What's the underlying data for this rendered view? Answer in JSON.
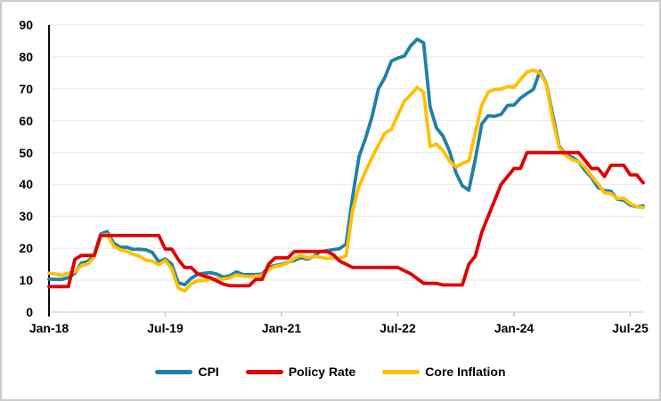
{
  "figure": {
    "background": "#FFFFFF",
    "border_color": "#CBCBCB",
    "gridline_color": "#EDEDED",
    "x_axis_color": "#D9D9D9",
    "y_axis_color": "#000000"
  },
  "legend": {
    "items": [
      {
        "label": "CPI",
        "color": "#2080A8"
      },
      {
        "label": "Policy Rate",
        "color": "#E00000"
      },
      {
        "label": "Core Inflation",
        "color": "#FFC000"
      }
    ]
  },
  "chart_data": {
    "type": "line",
    "title": "",
    "xlabel": "",
    "ylabel": "",
    "ylim": [
      0,
      90
    ],
    "y_ticks": [
      0,
      10,
      20,
      30,
      40,
      50,
      60,
      70,
      80,
      90
    ],
    "grid": "horizontal",
    "legend_position": "bottom",
    "x_tick_labels": [
      "Jan-18",
      "Jul-19",
      "Jan-21",
      "Jul-22",
      "Jan-24",
      "Jul-25"
    ],
    "x_tick_indices": [
      0,
      18,
      36,
      54,
      72,
      90
    ],
    "x": [
      "Jan-18",
      "Feb-18",
      "Mar-18",
      "Apr-18",
      "May-18",
      "Jun-18",
      "Jul-18",
      "Aug-18",
      "Sep-18",
      "Oct-18",
      "Nov-18",
      "Dec-18",
      "Jan-19",
      "Feb-19",
      "Mar-19",
      "Apr-19",
      "May-19",
      "Jun-19",
      "Jul-19",
      "Aug-19",
      "Sep-19",
      "Oct-19",
      "Nov-19",
      "Dec-19",
      "Jan-20",
      "Feb-20",
      "Mar-20",
      "Apr-20",
      "May-20",
      "Jun-20",
      "Jul-20",
      "Aug-20",
      "Sep-20",
      "Oct-20",
      "Nov-20",
      "Dec-20",
      "Jan-21",
      "Feb-21",
      "Mar-21",
      "Apr-21",
      "May-21",
      "Jun-21",
      "Jul-21",
      "Aug-21",
      "Sep-21",
      "Oct-21",
      "Nov-21",
      "Dec-21",
      "Jan-22",
      "Feb-22",
      "Mar-22",
      "Apr-22",
      "May-22",
      "Jun-22",
      "Jul-22",
      "Aug-22",
      "Sep-22",
      "Oct-22",
      "Nov-22",
      "Dec-22",
      "Jan-23",
      "Feb-23",
      "Mar-23",
      "Apr-23",
      "May-23",
      "Jun-23",
      "Jul-23",
      "Aug-23",
      "Sep-23",
      "Oct-23",
      "Nov-23",
      "Dec-23",
      "Jan-24",
      "Feb-24",
      "Mar-24",
      "Apr-24",
      "May-24",
      "Jun-24",
      "Jul-24",
      "Aug-24",
      "Sep-24",
      "Oct-24",
      "Nov-24",
      "Dec-24",
      "Jan-25",
      "Feb-25",
      "Mar-25",
      "Apr-25",
      "May-25",
      "Jun-25",
      "Jul-25",
      "Aug-25",
      "Sep-25"
    ],
    "series": [
      {
        "name": "CPI",
        "color": "#2080A8",
        "values": [
          10.35,
          10.26,
          10.23,
          10.85,
          12.15,
          15.39,
          15.85,
          17.9,
          24.52,
          25.24,
          21.62,
          20.3,
          20.35,
          19.67,
          19.71,
          19.5,
          18.71,
          15.72,
          16.65,
          15.01,
          9.26,
          8.55,
          10.56,
          11.84,
          12.15,
          12.37,
          11.86,
          10.94,
          11.39,
          12.62,
          11.76,
          11.77,
          11.75,
          11.89,
          14.03,
          14.6,
          14.97,
          15.61,
          16.19,
          17.14,
          16.59,
          17.53,
          18.95,
          19.25,
          19.58,
          19.89,
          21.31,
          36.08,
          48.69,
          54.44,
          61.14,
          69.97,
          73.5,
          78.62,
          79.6,
          80.21,
          83.45,
          85.51,
          84.39,
          64.27,
          57.68,
          55.18,
          50.51,
          43.68,
          39.59,
          38.21,
          47.83,
          58.94,
          61.53,
          61.36,
          61.98,
          64.77,
          64.86,
          67.07,
          68.5,
          69.8,
          75.45,
          71.6,
          61.78,
          51.97,
          49.38,
          48.58,
          47.09,
          44.38,
          42.12,
          39.05,
          38.1,
          37.86,
          35.41,
          35.05,
          33.52,
          32.95,
          33.29
        ]
      },
      {
        "name": "Policy Rate",
        "color": "#E00000",
        "values": [
          8,
          8,
          8,
          8,
          16.5,
          17.75,
          17.75,
          17.75,
          24,
          24,
          24,
          24,
          24,
          24,
          24,
          24,
          24,
          24,
          19.75,
          19.75,
          16.5,
          14,
          14,
          12,
          11.25,
          10.75,
          9.75,
          8.75,
          8.25,
          8.25,
          8.25,
          8.25,
          10.25,
          10.25,
          15,
          17,
          17,
          17,
          19,
          19,
          19,
          19,
          19,
          19,
          18,
          16,
          15,
          14,
          14,
          14,
          14,
          14,
          14,
          14,
          14,
          13,
          12,
          10.5,
          9,
          9,
          9,
          8.5,
          8.5,
          8.5,
          8.5,
          15,
          17.5,
          25,
          30,
          35,
          40,
          42.5,
          45,
          45,
          50,
          50,
          50,
          50,
          50,
          50,
          50,
          50,
          50,
          47.5,
          45,
          45,
          42.5,
          46,
          46,
          46,
          43,
          43,
          40.5
        ]
      },
      {
        "name": "Core Inflation",
        "color": "#FFC000",
        "values": [
          12.18,
          11.94,
          11.44,
          12.24,
          12.64,
          14.6,
          15.1,
          17.22,
          24.05,
          24.34,
          20.72,
          19.53,
          19.1,
          18.12,
          17.53,
          16.3,
          15.9,
          14.86,
          16.2,
          13.6,
          7.54,
          6.67,
          8.8,
          9.81,
          9.88,
          10.27,
          10.46,
          10.33,
          10.72,
          11.64,
          11.28,
          11.03,
          11.32,
          11.48,
          13.26,
          14.31,
          14.71,
          15.45,
          16.88,
          17.77,
          16.99,
          17.47,
          17.22,
          16.76,
          16.98,
          16.82,
          17.62,
          31.88,
          39.45,
          44.05,
          48.39,
          52.37,
          56.04,
          57.26,
          61.69,
          66.09,
          68.09,
          70.45,
          68.86,
          51.93,
          52.66,
          50.58,
          47.36,
          45.48,
          46.62,
          47.33,
          56.09,
          64.86,
          68.93,
          69.8,
          69.89,
          70.64,
          70.48,
          72.89,
          75.21,
          75.81,
          74.98,
          71.41,
          60.23,
          51.56,
          49.1,
          47.75,
          47.13,
          45.34,
          42.65,
          40.21,
          37.42,
          37.12,
          35.64,
          35.64,
          33.98,
          33.03,
          32.74
        ]
      }
    ]
  }
}
